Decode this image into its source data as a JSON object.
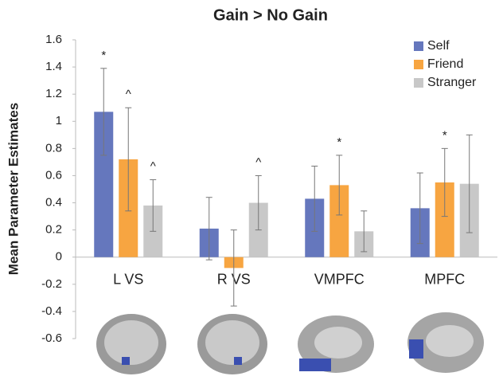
{
  "chart_data": {
    "type": "bar",
    "title": "Gain > No Gain",
    "y_label": "Mean Parameter Estimates",
    "categories": [
      "L VS",
      "R VS",
      "VMPFC",
      "MPFC"
    ],
    "series": [
      {
        "name": "Self",
        "color": "#6577bd",
        "values": [
          1.07,
          0.21,
          0.43,
          0.36
        ],
        "errors": [
          0.32,
          0.23,
          0.24,
          0.26
        ],
        "annotations": [
          "*",
          null,
          null,
          null
        ]
      },
      {
        "name": "Friend",
        "color": "#f7a541",
        "values": [
          0.72,
          -0.08,
          0.53,
          0.55
        ],
        "errors": [
          0.38,
          0.28,
          0.22,
          0.25
        ],
        "annotations": [
          "^",
          null,
          "*",
          "*"
        ]
      },
      {
        "name": "Stranger",
        "color": "#c8c8c8",
        "values": [
          0.38,
          0.4,
          0.19,
          0.54
        ],
        "errors": [
          0.19,
          0.2,
          0.15,
          0.36
        ],
        "annotations": [
          "^",
          "^",
          null,
          null
        ]
      }
    ],
    "ylim": [
      -0.6,
      1.6
    ],
    "yticks": [
      -0.6,
      -0.4,
      -0.2,
      0,
      0.2,
      0.4,
      0.6,
      0.8,
      1,
      1.2,
      1.4,
      1.6
    ],
    "grid": false,
    "legend": "top-right"
  }
}
